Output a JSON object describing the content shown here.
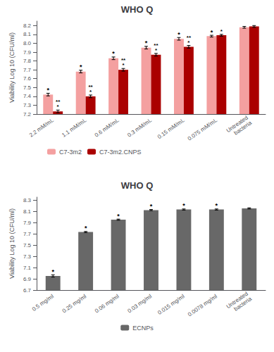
{
  "chart_data": [
    {
      "type": "bar",
      "title": "WHO Q",
      "categories": [
        "2.2 mM/mL",
        "1.1 mM/mL",
        "0.6 mM/mL",
        "0.3 mM/mL",
        "0.15 mM/mL",
        "0.075 mM/mL",
        "Untreated\nbacteria"
      ],
      "series": [
        {
          "name": "C7-3m2",
          "color": "#F4A0A0",
          "values": [
            7.42,
            7.68,
            7.83,
            7.95,
            8.05,
            8.08,
            8.18
          ],
          "errors": [
            0.015,
            0.015,
            0.015,
            0.015,
            0.015,
            0.01,
            0.01
          ],
          "annotations": [
            "*",
            "*",
            "*",
            "*",
            "*",
            "*",
            null
          ]
        },
        {
          "name": "C7-3m2.CNPS",
          "color": "#AA0000",
          "values": [
            7.23,
            7.4,
            7.7,
            7.87,
            7.96,
            8.09,
            8.19
          ],
          "errors": [
            0.015,
            0.015,
            0.015,
            0.015,
            0.015,
            0.01,
            0.01
          ],
          "annotations": [
            "**\n*",
            "**\n*",
            "**\n*",
            "**\n*",
            "**\n*",
            "*",
            null
          ]
        }
      ],
      "ylim": [
        7.2,
        8.25
      ],
      "yticks": [
        7.2,
        7.3,
        7.4,
        7.5,
        7.6,
        7.7,
        7.8,
        7.9,
        {
          "value": 8.0,
          "label": "8.0"
        },
        8.1,
        8.2
      ],
      "ylabel": "Viability Log 10 (CFU/ml)",
      "grid": false,
      "legend": "lower left"
    },
    {
      "type": "bar",
      "title": "WHO Q",
      "categories": [
        "0.5 mg/ml",
        "0.25 mg/ml",
        "0.06 mg/ml",
        "0.03 mg/ml",
        "0.015 mg/ml",
        "0.0078 mg/ml",
        "Untreated\nbacteria"
      ],
      "series": [
        {
          "name": "ECNPs",
          "color": "#686868",
          "values": [
            6.95,
            7.73,
            7.95,
            8.12,
            8.13,
            8.13,
            8.15
          ],
          "errors": [
            0.02,
            0.01,
            0.01,
            0.01,
            0.01,
            0.01,
            0.01
          ],
          "annotations": [
            "*",
            "*",
            "*",
            "*",
            "*",
            "*",
            null
          ]
        }
      ],
      "ylim": [
        6.7,
        8.35
      ],
      "yticks": [
        6.7,
        6.9,
        7.1,
        7.3,
        7.5,
        7.7,
        7.9,
        8.1,
        8.3
      ],
      "ylabel": "Viability Log 10 (CFU/ml)",
      "grid": false,
      "legend": "lower center"
    }
  ]
}
